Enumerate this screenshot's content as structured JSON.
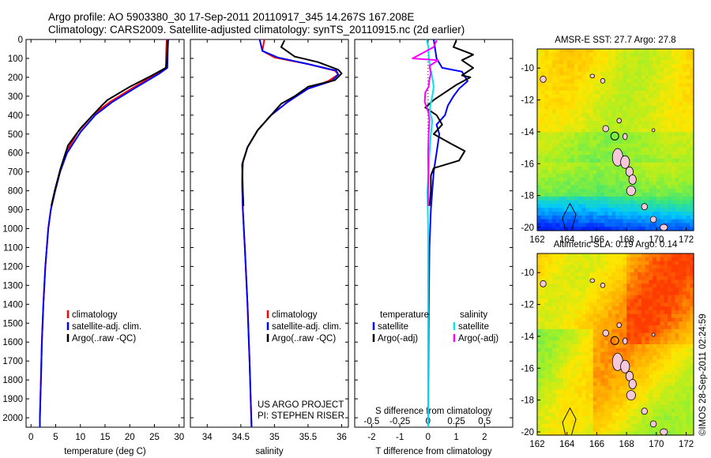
{
  "title": {
    "line1": "Argo profile: AO 5903380_30 17-Sep-2011 20110917_345 14.267S 167.208E",
    "line2": "Climatology: CARS2009. Satellite-adjusted climatology: synTS_20110915.nc (2d earlier)"
  },
  "project_note": {
    "line1": "US ARGO PROJECT",
    "line2": "PI: STEPHEN RISER"
  },
  "watermark": "©IMOS 28-Sep-2011 02:24:59",
  "colors": {
    "climatology": "#ff0000",
    "satellite": "#0000ff",
    "argo": "#000000",
    "salinity_satellite": "#00e5ee",
    "salinity_argo": "#ff00ff"
  },
  "chart_data": [
    {
      "id": "temperature",
      "type": "line",
      "xlabel": "temperature (deg C)",
      "xlim": [
        -1,
        31
      ],
      "xticks": [
        0,
        5,
        10,
        15,
        20,
        25,
        30
      ],
      "ylim": [
        0,
        2050
      ],
      "yticks": [
        0,
        100,
        200,
        300,
        400,
        500,
        600,
        700,
        800,
        900,
        1000,
        1100,
        1200,
        1300,
        1400,
        1500,
        1600,
        1700,
        1800,
        1900,
        2000
      ],
      "y_reversed": true,
      "legend": [
        "climatology",
        "satellite-adj. clim.",
        "Argo(..raw -QC)"
      ],
      "series": [
        {
          "name": "climatology",
          "color": "#ff0000",
          "points": [
            [
              27.5,
              0
            ],
            [
              27.4,
              50
            ],
            [
              27.3,
              150
            ],
            [
              25.5,
              180
            ],
            [
              21,
              250
            ],
            [
              16,
              330
            ],
            [
              12.5,
              400
            ],
            [
              9.5,
              490
            ],
            [
              7,
              600
            ],
            [
              5.8,
              700
            ],
            [
              4.8,
              800
            ],
            [
              4,
              900
            ],
            [
              3.5,
              1000
            ],
            [
              2.9,
              1200
            ],
            [
              2.5,
              1400
            ],
            [
              2.2,
              1600
            ],
            [
              2,
              1800
            ],
            [
              1.8,
              2000
            ],
            [
              1.8,
              2050
            ]
          ]
        },
        {
          "name": "satellite-adj. clim.",
          "color": "#0000ff",
          "points": [
            [
              27.8,
              0
            ],
            [
              27.7,
              50
            ],
            [
              27.6,
              150
            ],
            [
              26,
              180
            ],
            [
              21.5,
              250
            ],
            [
              16.5,
              330
            ],
            [
              13,
              400
            ],
            [
              10,
              490
            ],
            [
              7.3,
              600
            ],
            [
              5.9,
              700
            ],
            [
              4.9,
              800
            ],
            [
              4,
              900
            ],
            [
              3.5,
              1000
            ],
            [
              2.9,
              1200
            ],
            [
              2.5,
              1400
            ],
            [
              2.2,
              1600
            ],
            [
              2,
              1800
            ],
            [
              1.8,
              2000
            ],
            [
              1.8,
              2050
            ]
          ]
        },
        {
          "name": "Argo(..raw -QC)",
          "color": "#000000",
          "points": [
            [
              27.6,
              5
            ],
            [
              27.6,
              50
            ],
            [
              27.5,
              120
            ],
            [
              27.3,
              150
            ],
            [
              24.5,
              190
            ],
            [
              20,
              250
            ],
            [
              15.5,
              320
            ],
            [
              14.5,
              345
            ],
            [
              12.5,
              400
            ],
            [
              10,
              470
            ],
            [
              7.5,
              560
            ],
            [
              6,
              680
            ],
            [
              4.8,
              800
            ],
            [
              4.1,
              880
            ]
          ]
        }
      ]
    },
    {
      "id": "salinity",
      "type": "line",
      "xlabel": "salinity",
      "xlim": [
        33.75,
        36.1
      ],
      "xticks": [
        34,
        34.5,
        35,
        35.5,
        36
      ],
      "xticklabels": [
        "34",
        "34.5",
        "35",
        "35.5",
        "36"
      ],
      "ylim": [
        0,
        2050
      ],
      "y_reversed": true,
      "legend": [
        "climatology",
        "satellite-adj. clim.",
        "Argo(..raw -QC)"
      ],
      "series": [
        {
          "name": "climatology",
          "color": "#ff0000",
          "points": [
            [
              34.85,
              0
            ],
            [
              34.82,
              60
            ],
            [
              35.0,
              95
            ],
            [
              35.5,
              130
            ],
            [
              35.9,
              165
            ],
            [
              35.95,
              185
            ],
            [
              35.8,
              220
            ],
            [
              35.5,
              260
            ],
            [
              35.2,
              330
            ],
            [
              34.95,
              400
            ],
            [
              34.75,
              480
            ],
            [
              34.6,
              570
            ],
            [
              34.53,
              650
            ],
            [
              34.52,
              750
            ],
            [
              34.53,
              900
            ],
            [
              34.56,
              1100
            ],
            [
              34.6,
              1400
            ],
            [
              34.63,
              1700
            ],
            [
              34.66,
              2050
            ]
          ]
        },
        {
          "name": "satellite-adj. clim.",
          "color": "#0000ff",
          "points": [
            [
              34.78,
              0
            ],
            [
              34.82,
              60
            ],
            [
              35.05,
              95
            ],
            [
              35.5,
              130
            ],
            [
              35.92,
              165
            ],
            [
              35.95,
              185
            ],
            [
              35.85,
              220
            ],
            [
              35.5,
              260
            ],
            [
              35.2,
              330
            ],
            [
              34.95,
              400
            ],
            [
              34.75,
              480
            ],
            [
              34.6,
              570
            ],
            [
              34.53,
              650
            ],
            [
              34.52,
              750
            ],
            [
              34.53,
              900
            ],
            [
              34.56,
              1100
            ],
            [
              34.6,
              1400
            ],
            [
              34.63,
              1700
            ],
            [
              34.66,
              2050
            ]
          ]
        },
        {
          "name": "Argo(..raw -QC)",
          "color": "#000000",
          "points": [
            [
              35.15,
              5
            ],
            [
              35.1,
              40
            ],
            [
              35.3,
              90
            ],
            [
              35.65,
              120
            ],
            [
              35.95,
              160
            ],
            [
              36.0,
              180
            ],
            [
              35.9,
              215
            ],
            [
              35.5,
              250
            ],
            [
              35.3,
              300
            ],
            [
              35.1,
              340
            ],
            [
              34.95,
              400
            ],
            [
              34.75,
              480
            ],
            [
              34.6,
              570
            ],
            [
              34.52,
              660
            ],
            [
              34.53,
              800
            ],
            [
              34.54,
              880
            ]
          ]
        }
      ]
    },
    {
      "id": "differences",
      "type": "line",
      "xlabel_top": "S difference from climatology",
      "xlabel": "T difference from climatology",
      "xlim": [
        -2.6,
        3.0
      ],
      "xticks": [
        -2,
        -1,
        0,
        1,
        2
      ],
      "s_ticks": [
        -0.5,
        -0.25,
        0,
        0.25,
        0.5
      ],
      "ylim": [
        0,
        2050
      ],
      "y_reversed": true,
      "legend_temperature": {
        "title": "temperature",
        "items": [
          "satellite",
          "Argo(-adj)"
        ]
      },
      "legend_salinity": {
        "title": "salinity",
        "items": [
          "satellite",
          "Argo(-adj)"
        ]
      },
      "series": [
        {
          "name": "temperature satellite",
          "color": "#0000ff",
          "points": [
            [
              0.2,
              0
            ],
            [
              0.25,
              50
            ],
            [
              0.3,
              100
            ],
            [
              0.5,
              150
            ],
            [
              1.2,
              170
            ],
            [
              1.4,
              220
            ],
            [
              1.1,
              260
            ],
            [
              0.9,
              300
            ],
            [
              0.7,
              350
            ],
            [
              0.6,
              400
            ],
            [
              0.3,
              450
            ],
            [
              0.4,
              500
            ],
            [
              0.3,
              600
            ],
            [
              0.2,
              700
            ],
            [
              0.15,
              800
            ],
            [
              0.1,
              900
            ],
            [
              0.05,
              1100
            ],
            [
              0.02,
              1500
            ],
            [
              0,
              2050
            ]
          ]
        },
        {
          "name": "temperature Argo(-adj)",
          "color": "#000000",
          "points": [
            [
              1.0,
              5
            ],
            [
              0.9,
              40
            ],
            [
              1.6,
              80
            ],
            [
              1.2,
              110
            ],
            [
              1.6,
              150
            ],
            [
              1.2,
              190
            ],
            [
              1.5,
              200
            ],
            [
              1.0,
              240
            ],
            [
              0.6,
              280
            ],
            [
              0.2,
              320
            ],
            [
              -0.1,
              360
            ],
            [
              0.3,
              400
            ],
            [
              0.5,
              450
            ],
            [
              0.2,
              500
            ],
            [
              0.8,
              550
            ],
            [
              1.3,
              590
            ],
            [
              1.1,
              640
            ],
            [
              0.2,
              680
            ],
            [
              0.1,
              720
            ],
            [
              0.1,
              800
            ],
            [
              0.05,
              880
            ]
          ]
        },
        {
          "name": "salinity satellite",
          "color": "#00e5ee",
          "points": [
            [
              -0.05,
              0
            ],
            [
              0.01,
              40
            ],
            [
              0.03,
              100
            ],
            [
              0.08,
              150
            ],
            [
              0.15,
              200
            ],
            [
              0.2,
              250
            ],
            [
              0.15,
              300
            ],
            [
              0.08,
              350
            ],
            [
              0.06,
              380
            ],
            [
              0.15,
              430
            ],
            [
              0.1,
              500
            ],
            [
              0.05,
              600
            ],
            [
              0.02,
              700
            ],
            [
              -0.02,
              800
            ],
            [
              -0.01,
              900
            ],
            [
              0,
              1000
            ],
            [
              0,
              1500
            ],
            [
              0,
              2050
            ]
          ]
        },
        {
          "name": "salinity Argo(-adj)",
          "color": "#ff00ff",
          "points": [
            [
              0.3,
              5
            ],
            [
              0.2,
              40
            ],
            [
              -0.55,
              100
            ],
            [
              0.35,
              110
            ],
            [
              0.05,
              140
            ],
            [
              0.1,
              180
            ],
            [
              0.05,
              210
            ],
            [
              0.02,
              250
            ],
            [
              -0.1,
              280
            ],
            [
              -0.12,
              330
            ],
            [
              0.0,
              380
            ],
            [
              0.05,
              420
            ],
            [
              0.02,
              500
            ],
            [
              0.0,
              600
            ],
            [
              0.01,
              700
            ],
            [
              0.0,
              800
            ],
            [
              0.0,
              880
            ]
          ]
        }
      ]
    },
    {
      "id": "sst_map",
      "type": "heatmap",
      "title": "AMSR-E SST: 27.7  Argo: 27.8",
      "xlim": [
        162,
        172.5
      ],
      "ylim": [
        -20.2,
        -8.8
      ],
      "xticks": [
        162,
        164,
        166,
        168,
        170,
        172
      ],
      "yticks": [
        -10,
        -12,
        -14,
        -16,
        -18,
        -20
      ],
      "marker": {
        "lon": 167.208,
        "lat": -14.267
      }
    },
    {
      "id": "sla_map",
      "type": "heatmap",
      "title": "Altimetric SLA: 0.19  Argo: 0.14",
      "xlim": [
        162,
        172.5
      ],
      "ylim": [
        -20.2,
        -8.8
      ],
      "xticks": [
        162,
        164,
        166,
        168,
        170,
        172
      ],
      "yticks": [
        -10,
        -12,
        -14,
        -16,
        -18,
        -20
      ],
      "marker": {
        "lon": 167.208,
        "lat": -14.267
      }
    }
  ]
}
